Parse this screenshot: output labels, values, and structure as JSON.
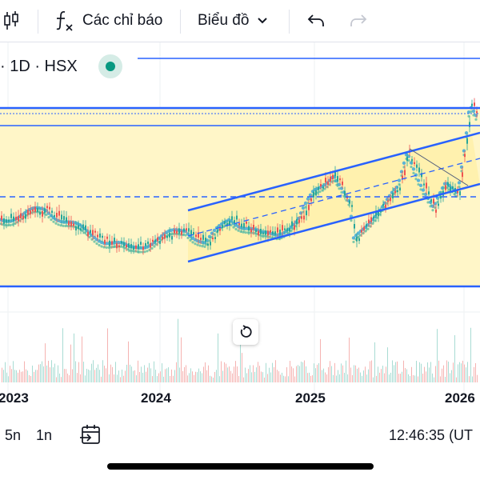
{
  "toolbar": {
    "indicators_label": "Các chỉ báo",
    "chart_type_label": "Biểu đồ",
    "icons": [
      "candlestick-icon",
      "function-icon",
      "chevron-down-icon",
      "undo-icon",
      "redo-icon"
    ]
  },
  "symbol": {
    "interval_text": "· 1D · HSX",
    "market_status_color": "#089981"
  },
  "chart": {
    "time_axis": [
      "2023",
      "2024",
      "2025",
      "2026"
    ],
    "colors": {
      "up": "#26a69a",
      "down": "#ef5350",
      "line": "#2962ff",
      "highlight_fill": "#fff6c8",
      "cloud": "#5bb4d6"
    }
  },
  "bottom_bar": {
    "ranges": [
      "5n",
      "1n"
    ],
    "clock": "12:46:35 (UT"
  }
}
